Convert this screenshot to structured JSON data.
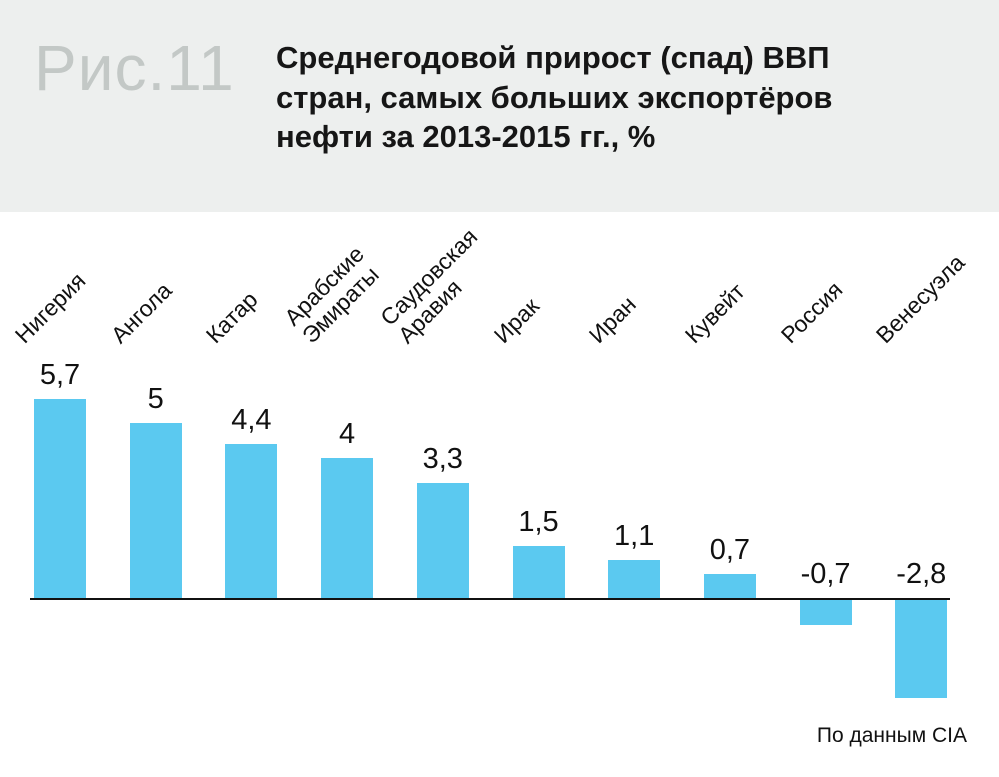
{
  "figure_label": "Рис.11",
  "title": "Среднегодовой прирост (спад) ВВП\nстран, самых больших экспортёров\nнефти за 2013-2015 гг., %",
  "source": "По данным CIA",
  "colors": {
    "bar": "#5bc9f0",
    "header_bg": "#edefee",
    "figure_label": "#c3c8c6",
    "axis": "#111111"
  },
  "chart_data": {
    "type": "bar",
    "title": "Среднегодовой прирост (спад) ВВП стран, самых больших экспортёров нефти за 2013-2015 гг., %",
    "categories": [
      "Нигерия",
      "Ангола",
      "Катар",
      "Арабские\nЭмираты",
      "Саудовская\nАравия",
      "Ирак",
      "Иран",
      "Кувейт",
      "Россия",
      "Венесуэла"
    ],
    "values": [
      5.7,
      5,
      4.4,
      4,
      3.3,
      1.5,
      1.1,
      0.7,
      -0.7,
      -2.8
    ],
    "value_labels": [
      "5,7",
      "5",
      "4,4",
      "4",
      "3,3",
      "1,5",
      "1,1",
      "0,7",
      "-0,7",
      "-2,8"
    ],
    "xlabel": "",
    "ylabel": "",
    "ylim": [
      -3,
      6
    ],
    "grid": false,
    "legend": false,
    "source": "По данным CIA"
  }
}
